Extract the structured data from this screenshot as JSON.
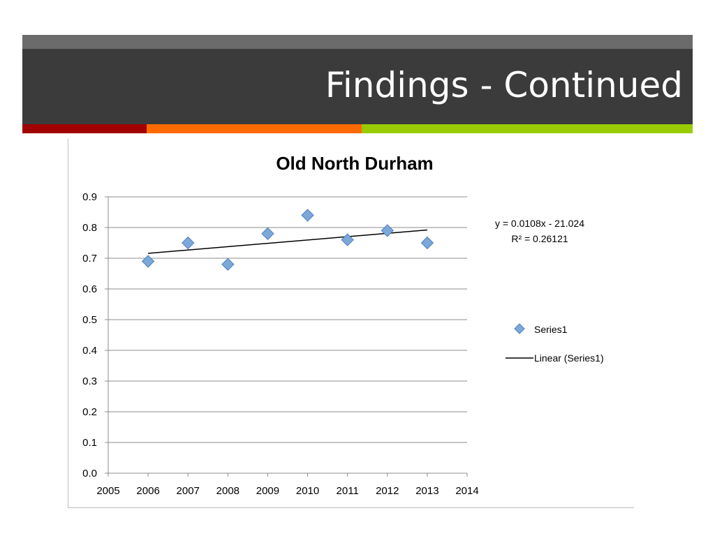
{
  "slide": {
    "title": "Findings - Continued"
  },
  "colors": {
    "band_top": "#6b6b6b",
    "band_main": "#3b3b3b",
    "stripe_red": "#a00000",
    "stripe_orange": "#ff6a00",
    "stripe_green": "#99cc00",
    "marker_fill": "#7ba7d9",
    "marker_stroke": "#4f81bd",
    "trendline": "#000000"
  },
  "chart_data": {
    "type": "scatter",
    "title": "Old North Durham",
    "xlabel": "",
    "ylabel": "",
    "xlim": [
      2005,
      2014
    ],
    "ylim": [
      0.0,
      0.9
    ],
    "x_ticks": [
      "2005",
      "2006",
      "2007",
      "2008",
      "2009",
      "2010",
      "2011",
      "2012",
      "2013",
      "2014"
    ],
    "y_ticks": [
      "0.0",
      "0.1",
      "0.2",
      "0.3",
      "0.4",
      "0.5",
      "0.6",
      "0.7",
      "0.8",
      "0.9"
    ],
    "grid": "horizontal",
    "legend_position": "right",
    "series": [
      {
        "name": "Series1",
        "x": [
          2006,
          2007,
          2008,
          2009,
          2010,
          2011,
          2012,
          2013
        ],
        "y": [
          0.69,
          0.75,
          0.68,
          0.78,
          0.84,
          0.76,
          0.79,
          0.75
        ]
      }
    ],
    "trendline": {
      "name": "Linear (Series1)",
      "x": [
        2006,
        2013
      ],
      "y": [
        0.716,
        0.792
      ],
      "equation": "y = 0.0108x - 21.024",
      "r_squared": "R² = 0.26121"
    }
  }
}
